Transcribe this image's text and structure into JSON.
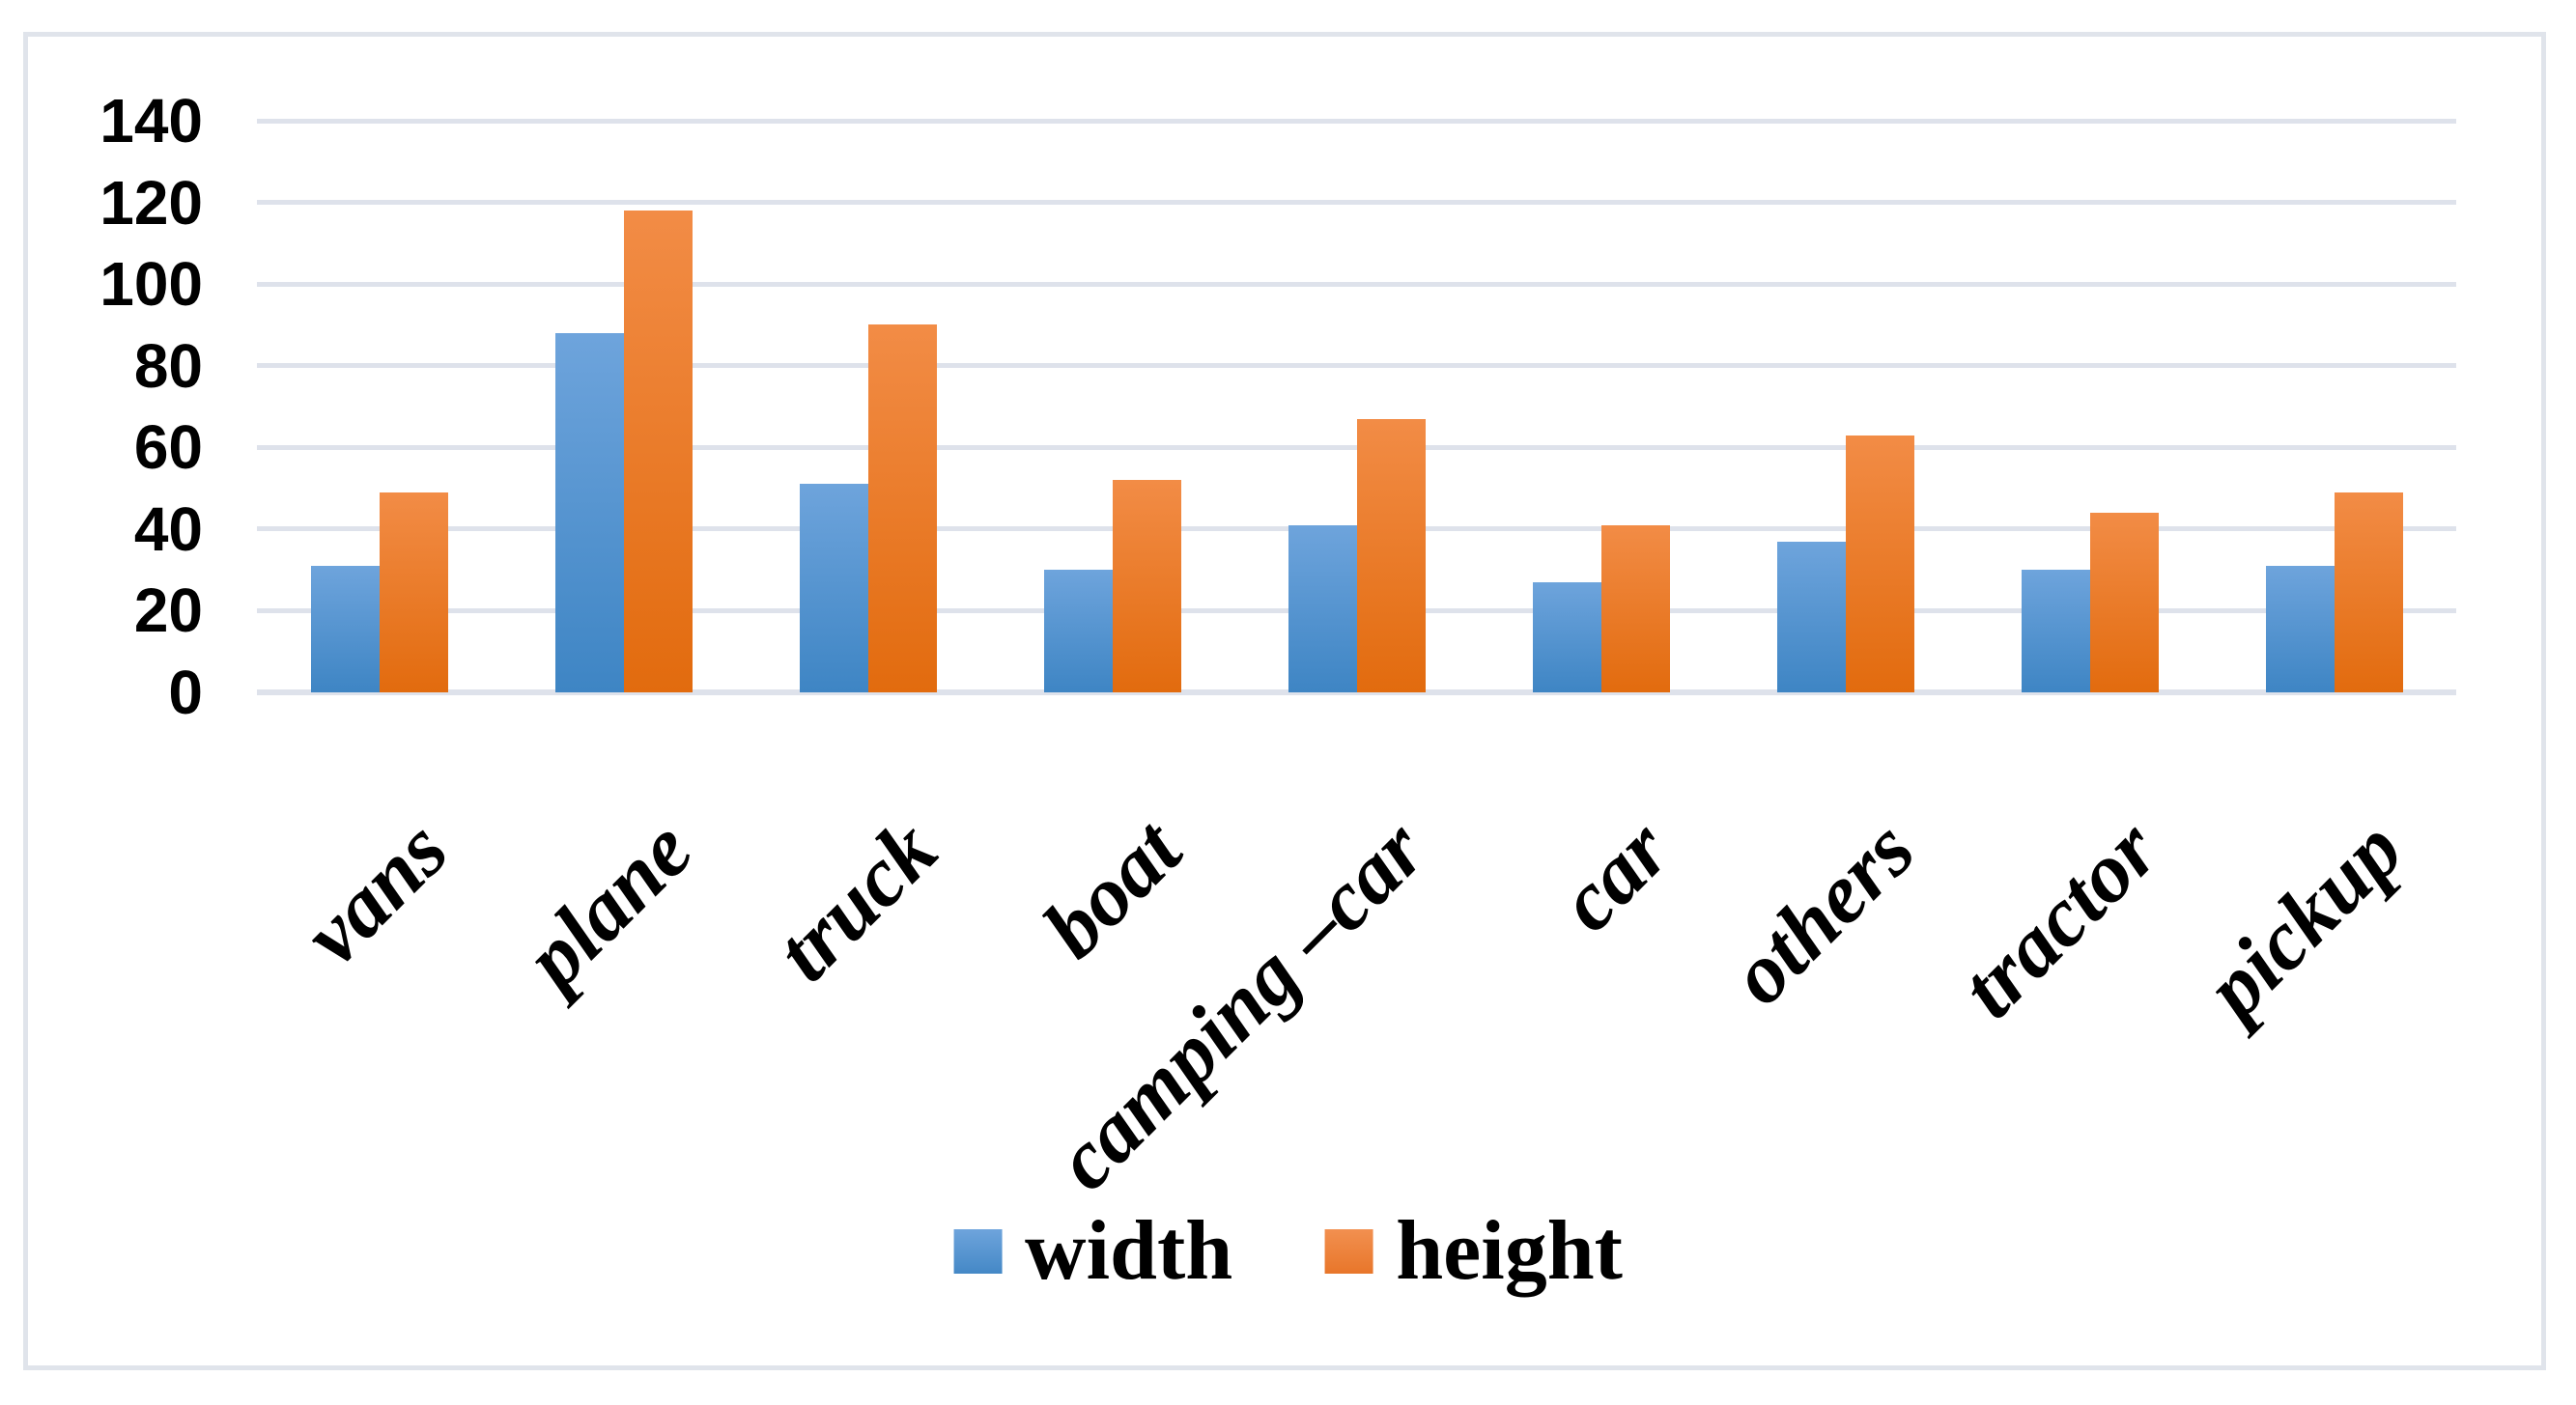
{
  "chart_data": {
    "type": "bar",
    "title": "",
    "xlabel": "",
    "ylabel": "",
    "categories": [
      "vans",
      "plane",
      "truck",
      "boat",
      "camping –car",
      "car",
      "others",
      "tractor",
      "pickup"
    ],
    "series": [
      {
        "name": "width",
        "values": [
          31,
          88,
          51,
          30,
          41,
          27,
          37,
          30,
          31
        ]
      },
      {
        "name": "height",
        "values": [
          49,
          118,
          90,
          52,
          67,
          41,
          63,
          44,
          49
        ]
      }
    ],
    "ylim": [
      0,
      140
    ],
    "yticks": [
      0,
      20,
      40,
      60,
      80,
      100,
      120,
      140
    ],
    "grid": true,
    "legend_position": "bottom",
    "colors": {
      "width_top": "#6ea4dc",
      "width_bottom": "#3e85c4",
      "height_top": "#f28c46",
      "height_bottom": "#e26b0e",
      "gridline": "#dee2eb",
      "chart_border": "#e0e4eb",
      "text": "#000000"
    }
  },
  "legend": {
    "items": [
      {
        "label": "width"
      },
      {
        "label": "height"
      }
    ]
  }
}
